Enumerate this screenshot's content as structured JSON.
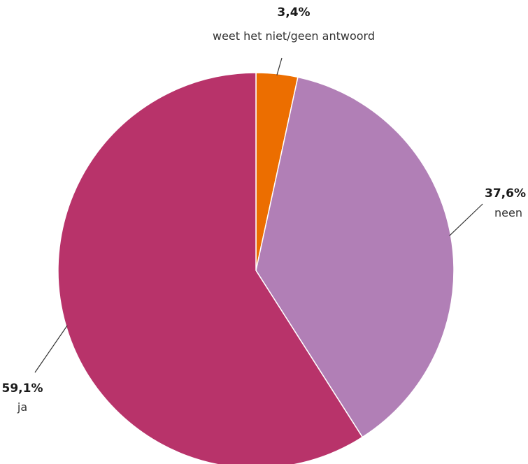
{
  "chart_data": {
    "type": "pie",
    "title": "",
    "slices": [
      {
        "label": "weet het niet/geen antwoord",
        "value": 3.4,
        "display": "3,4%",
        "color": "#ec6e00"
      },
      {
        "label": "neen",
        "value": 37.6,
        "display": "37,6%",
        "color": "#b17fb6"
      },
      {
        "label": "ja",
        "value": 59.1,
        "display": "59,1%",
        "color": "#b8336a"
      }
    ]
  }
}
